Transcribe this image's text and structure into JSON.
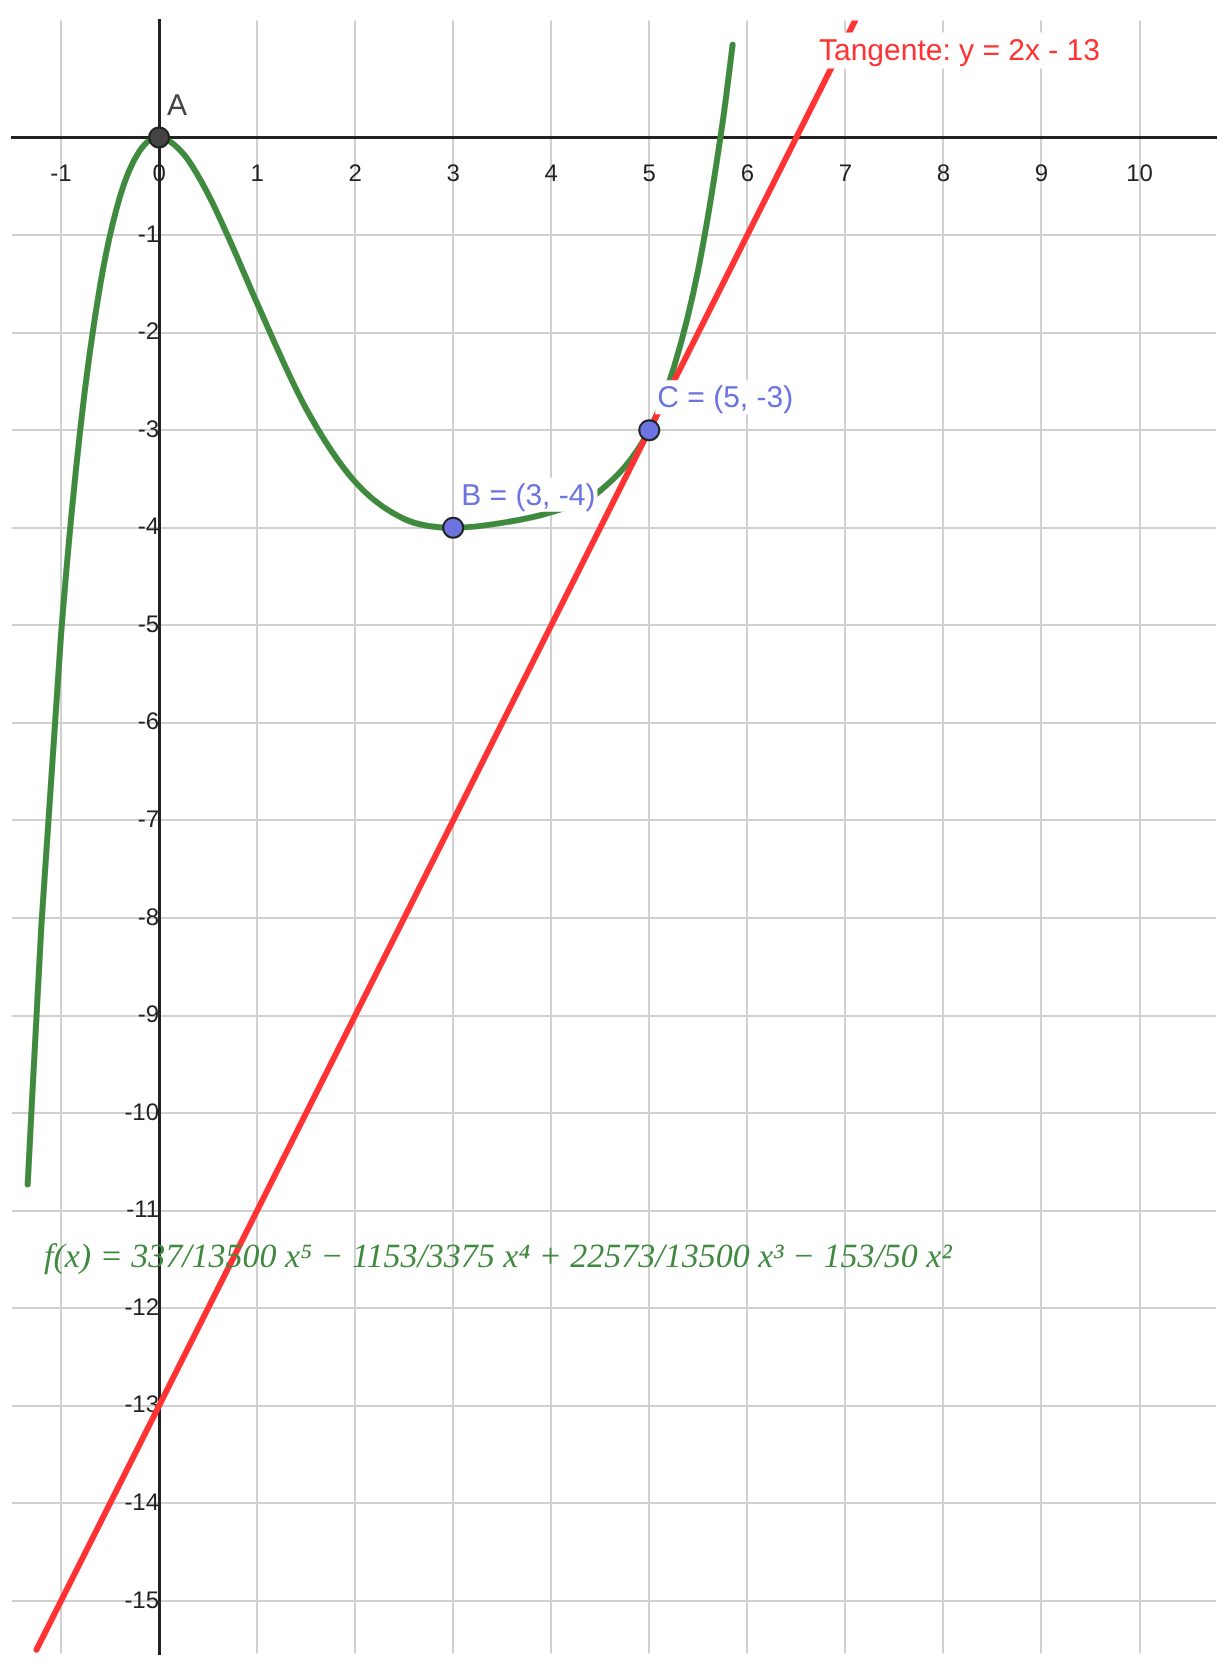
{
  "chart_data": {
    "type": "line",
    "xlim": [
      -1.5,
      10.78
    ],
    "ylim": [
      -15.54,
      1.2
    ],
    "xticks": [
      -1,
      {
        "value": 0,
        "label": "0"
      },
      1,
      2,
      3,
      4,
      5,
      6,
      7,
      8,
      9,
      10
    ],
    "yticks": [
      -15,
      -14,
      -13,
      -12,
      -11,
      -10,
      -9,
      -8,
      -7,
      -6,
      -5,
      -4,
      -3,
      -2,
      -1,
      {
        "value": 0,
        "label": null
      }
    ],
    "grid": true,
    "legend": false,
    "line_style": "solid",
    "series": [
      {
        "color": "#3f8a3f",
        "x": [
          -1.34,
          -1.2,
          -1,
          -0.8,
          -0.6,
          -0.4,
          -0.2,
          0,
          0.25,
          0.5,
          0.75,
          1,
          1.5,
          2,
          2.5,
          3,
          3.5,
          4,
          4.5,
          5,
          5.25,
          5.5,
          5.75,
          5.85
        ],
        "values": [
          -10.73,
          -8.07,
          -5.1,
          -2.96,
          -1.51,
          -0.61,
          -0.14,
          0,
          -0.17,
          -0.58,
          -1.12,
          -1.7,
          -2.78,
          -3.53,
          -3.91,
          -4,
          -3.95,
          -3.84,
          -3.62,
          -3,
          -2.36,
          -1.35,
          0.17,
          0.95
        ]
      },
      {
        "color": "#ff3333",
        "x": [
          -1.25,
          7.1
        ],
        "values": [
          -15.5,
          1.2
        ]
      },
      {
        "type": "scatter",
        "color": "#444444",
        "x": [
          0
        ],
        "values": [
          0
        ]
      },
      {
        "type": "scatter",
        "color": "#6b74e0",
        "x": [
          3
        ],
        "values": [
          -4
        ]
      },
      {
        "type": "scatter",
        "color": "#6b74e0",
        "x": [
          5
        ],
        "values": [
          -3
        ]
      }
    ],
    "annotations": [
      {
        "text": "A",
        "x": 0,
        "y": 0
      },
      {
        "text": "B = (3, -4)",
        "x": 3,
        "y": -4
      },
      {
        "text": "C = (5, -3)",
        "x": 5,
        "y": -3
      },
      "Tangente: y = 2x - 13",
      "f(x) = 337/13500 x⁵ − 1153/3375 x⁴ + 22573/13500 x³ − 153/50 x²"
    ]
  }
}
